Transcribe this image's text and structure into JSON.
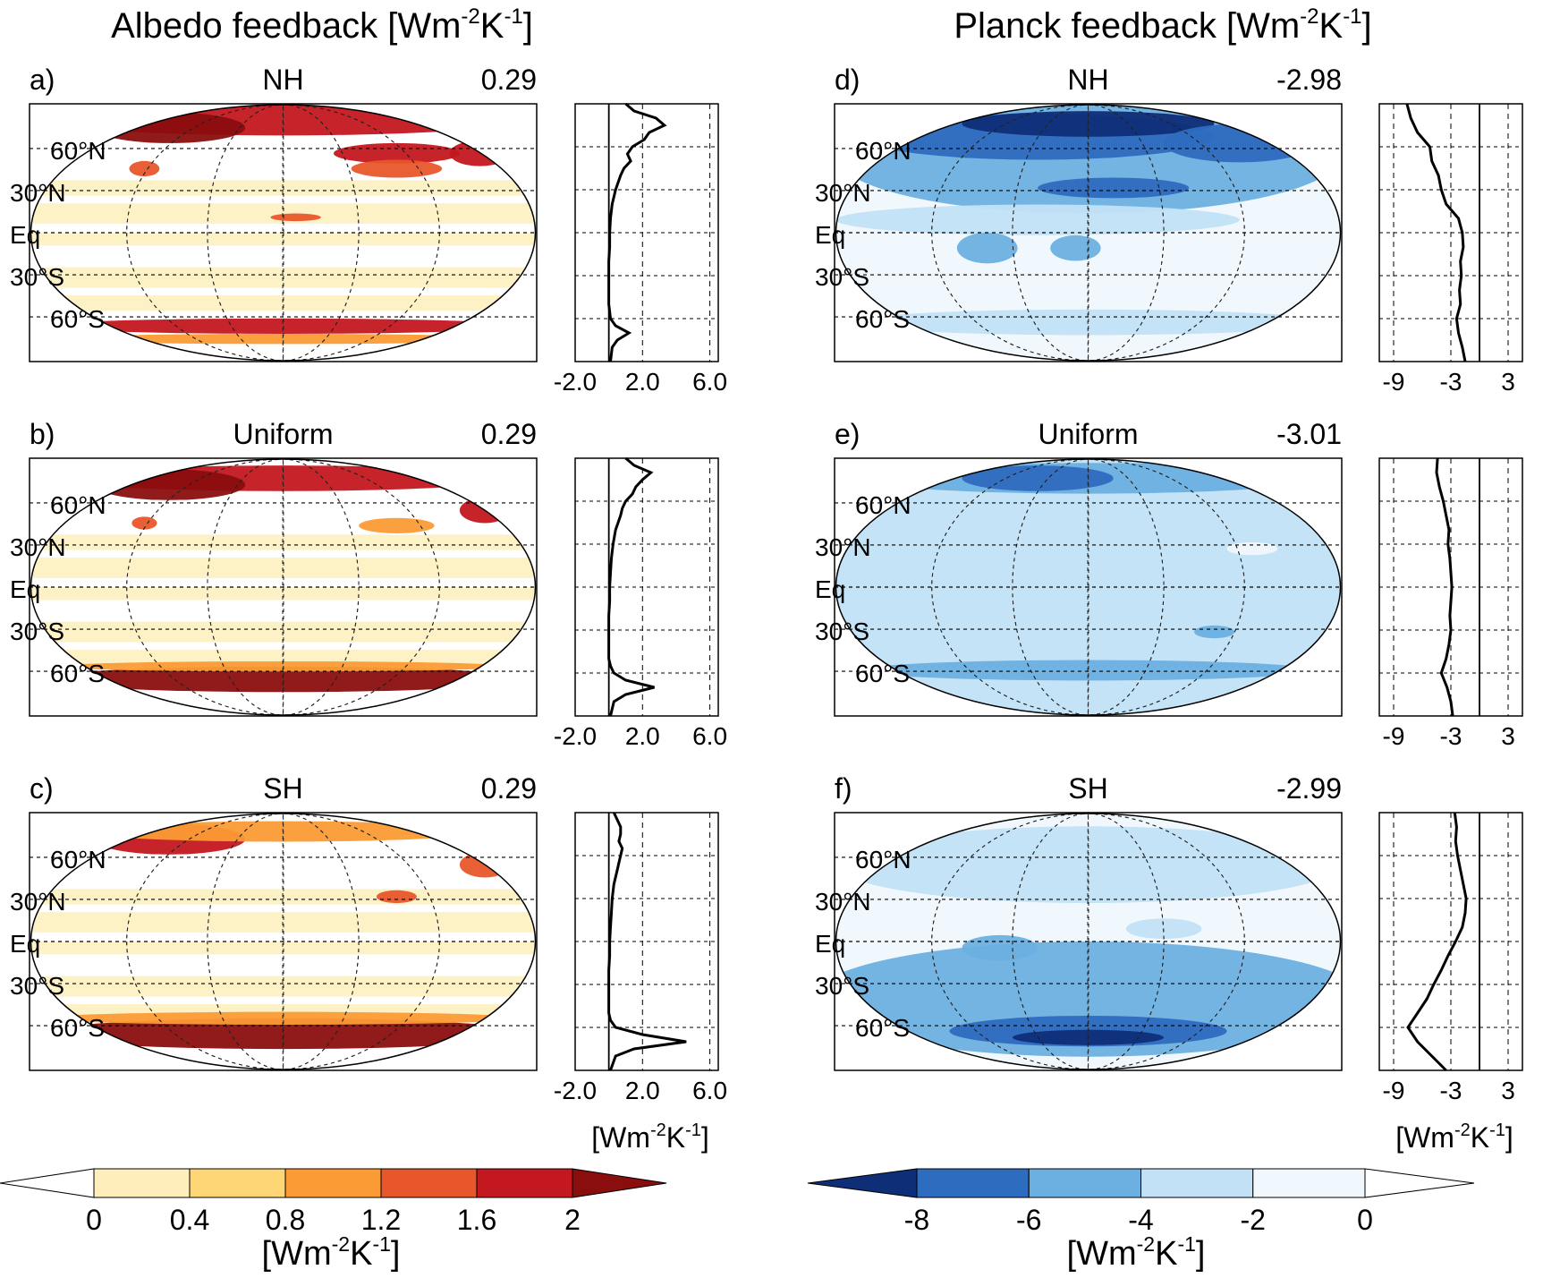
{
  "columns": [
    {
      "title": "Albedo feedback",
      "unit_pre": "[Wm",
      "unit_exp1": "-2",
      "unit_mid": "K",
      "unit_exp2": "-1",
      "unit_post": "]"
    },
    {
      "title": "Planck feedback",
      "unit_pre": "[Wm",
      "unit_exp1": "-2",
      "unit_mid": "K",
      "unit_exp2": "-1",
      "unit_post": "]"
    }
  ],
  "lat_labels": [
    "60°N",
    "30°N",
    "Eq",
    "30°S",
    "60°S"
  ],
  "panels": [
    {
      "letter": "a)",
      "name": "NH",
      "global_mean": "0.29",
      "kind": "albedo"
    },
    {
      "letter": "b)",
      "name": "Uniform",
      "global_mean": "0.29",
      "kind": "albedo"
    },
    {
      "letter": "c)",
      "name": "SH",
      "global_mean": "0.29",
      "kind": "albedo"
    },
    {
      "letter": "d)",
      "name": "NH",
      "global_mean": "-2.98",
      "kind": "planck"
    },
    {
      "letter": "e)",
      "name": "Uniform",
      "global_mean": "-3.01",
      "kind": "planck"
    },
    {
      "letter": "f)",
      "name": "SH",
      "global_mean": "-2.99",
      "kind": "planck"
    }
  ],
  "profile_axes": {
    "albedo": {
      "ticks": [
        "-2.0",
        "2.0",
        "6.0"
      ],
      "xlim": [
        -2,
        6.5
      ]
    },
    "planck": {
      "ticks": [
        "-9",
        "-3",
        "3"
      ],
      "xlim": [
        -10.5,
        4.5
      ]
    }
  },
  "colorbars": {
    "albedo": {
      "ticks": [
        "0",
        "0.4",
        "0.8",
        "1.2",
        "1.6",
        "2"
      ],
      "colors": [
        "#ffffff",
        "#fdeebc",
        "#fed676",
        "#fb9b35",
        "#e8562b",
        "#c3181f",
        "#8b0e0e"
      ]
    },
    "planck": {
      "ticks": [
        "-8",
        "-6",
        "-4",
        "-2",
        "0"
      ],
      "colors": [
        "#0f2e78",
        "#2e6cbf",
        "#6cb0e2",
        "#c2e1f6",
        "#f1f8fd",
        "#ffffff"
      ]
    },
    "unit_pre": "[Wm",
    "unit_exp1": "-2",
    "unit_mid": "K",
    "unit_exp2": "-1",
    "unit_post": "]"
  },
  "chart_data": [
    {
      "type": "line",
      "title": "a) NH",
      "global_mean": 0.29,
      "xlabel": "[Wm-2K-1]",
      "xlim": [
        -2,
        6.5
      ],
      "ylim": [
        -90,
        90
      ],
      "series": [
        {
          "y": [
            -90,
            -80,
            -75,
            -70,
            -65,
            -60,
            -55,
            -50,
            -45,
            -40,
            -30,
            -20,
            -10,
            0,
            10,
            20,
            30,
            40,
            45,
            50,
            55,
            60,
            65,
            70,
            75,
            80,
            85,
            90
          ],
          "values": [
            0.1,
            0.2,
            0.5,
            1.2,
            0.4,
            0.1,
            0.05,
            0.0,
            0.0,
            0.0,
            0.0,
            0.0,
            0.05,
            0.05,
            0.1,
            0.2,
            0.4,
            0.7,
            0.9,
            1.3,
            1.1,
            1.4,
            2.1,
            2.4,
            3.3,
            2.8,
            1.5,
            1.0
          ]
        }
      ]
    },
    {
      "type": "line",
      "title": "b) Uniform",
      "global_mean": 0.29,
      "xlabel": "[Wm-2K-1]",
      "xlim": [
        -2,
        6.5
      ],
      "ylim": [
        -90,
        90
      ],
      "series": [
        {
          "y": [
            -90,
            -80,
            -75,
            -70,
            -65,
            -60,
            -55,
            -50,
            -45,
            -40,
            -30,
            -20,
            -10,
            0,
            10,
            20,
            30,
            40,
            45,
            50,
            55,
            60,
            65,
            70,
            75,
            80,
            85,
            90
          ],
          "values": [
            0.1,
            0.3,
            1.0,
            2.7,
            1.0,
            0.3,
            0.1,
            0.0,
            0.0,
            0.0,
            0.0,
            0.0,
            0.05,
            0.05,
            0.1,
            0.15,
            0.25,
            0.4,
            0.55,
            0.7,
            0.8,
            1.0,
            1.4,
            1.6,
            2.0,
            2.5,
            1.5,
            1.0
          ]
        }
      ]
    },
    {
      "type": "line",
      "title": "c) SH",
      "global_mean": 0.29,
      "xlabel": "[Wm-2K-1]",
      "xlim": [
        -2,
        6.5
      ],
      "ylim": [
        -90,
        90
      ],
      "series": [
        {
          "y": [
            -90,
            -80,
            -75,
            -70,
            -65,
            -60,
            -55,
            -50,
            -45,
            -40,
            -30,
            -20,
            -10,
            0,
            10,
            20,
            30,
            40,
            45,
            50,
            55,
            60,
            65,
            70,
            75,
            80,
            85,
            90
          ],
          "values": [
            0.1,
            0.4,
            1.5,
            4.6,
            2.0,
            0.4,
            0.1,
            0.0,
            0.0,
            0.0,
            0.0,
            0.0,
            0.05,
            0.05,
            0.1,
            0.15,
            0.2,
            0.3,
            0.4,
            0.5,
            0.6,
            0.7,
            0.8,
            0.6,
            0.7,
            0.7,
            0.5,
            0.3
          ]
        }
      ]
    },
    {
      "type": "line",
      "title": "d) NH",
      "global_mean": -2.98,
      "xlabel": "[Wm-2K-1]",
      "xlim": [
        -10.5,
        4.5
      ],
      "ylim": [
        -90,
        90
      ],
      "series": [
        {
          "y": [
            -90,
            -80,
            -70,
            -60,
            -50,
            -40,
            -30,
            -20,
            -10,
            0,
            10,
            20,
            30,
            40,
            50,
            60,
            70,
            80,
            90
          ],
          "values": [
            -1.5,
            -1.8,
            -2.2,
            -2.4,
            -2.0,
            -2.1,
            -1.9,
            -2.0,
            -1.7,
            -1.8,
            -2.2,
            -3.5,
            -4.0,
            -4.3,
            -5.0,
            -5.2,
            -6.5,
            -7.2,
            -7.6
          ]
        }
      ]
    },
    {
      "type": "line",
      "title": "e) Uniform",
      "global_mean": -3.01,
      "xlabel": "[Wm-2K-1]",
      "xlim": [
        -10.5,
        4.5
      ],
      "ylim": [
        -90,
        90
      ],
      "series": [
        {
          "y": [
            -90,
            -80,
            -70,
            -60,
            -50,
            -40,
            -30,
            -20,
            -10,
            0,
            10,
            20,
            30,
            40,
            50,
            60,
            70,
            80,
            90
          ],
          "values": [
            -2.8,
            -3.0,
            -3.4,
            -4.0,
            -3.5,
            -3.2,
            -3.0,
            -3.1,
            -3.0,
            -2.9,
            -3.0,
            -3.1,
            -3.3,
            -3.2,
            -3.5,
            -3.8,
            -4.2,
            -4.5,
            -4.4
          ]
        }
      ]
    },
    {
      "type": "line",
      "title": "f) SH",
      "global_mean": -2.99,
      "xlabel": "[Wm-2K-1]",
      "xlim": [
        -10.5,
        4.5
      ],
      "ylim": [
        -90,
        90
      ],
      "series": [
        {
          "y": [
            -90,
            -80,
            -70,
            -60,
            -50,
            -40,
            -30,
            -20,
            -10,
            0,
            10,
            20,
            30,
            40,
            50,
            60,
            70,
            80,
            90
          ],
          "values": [
            -3.5,
            -5.0,
            -6.5,
            -7.5,
            -6.5,
            -5.5,
            -4.8,
            -4.0,
            -3.3,
            -2.5,
            -1.8,
            -1.5,
            -1.4,
            -1.7,
            -2.0,
            -2.3,
            -2.5,
            -2.4,
            -2.6
          ]
        }
      ]
    }
  ]
}
